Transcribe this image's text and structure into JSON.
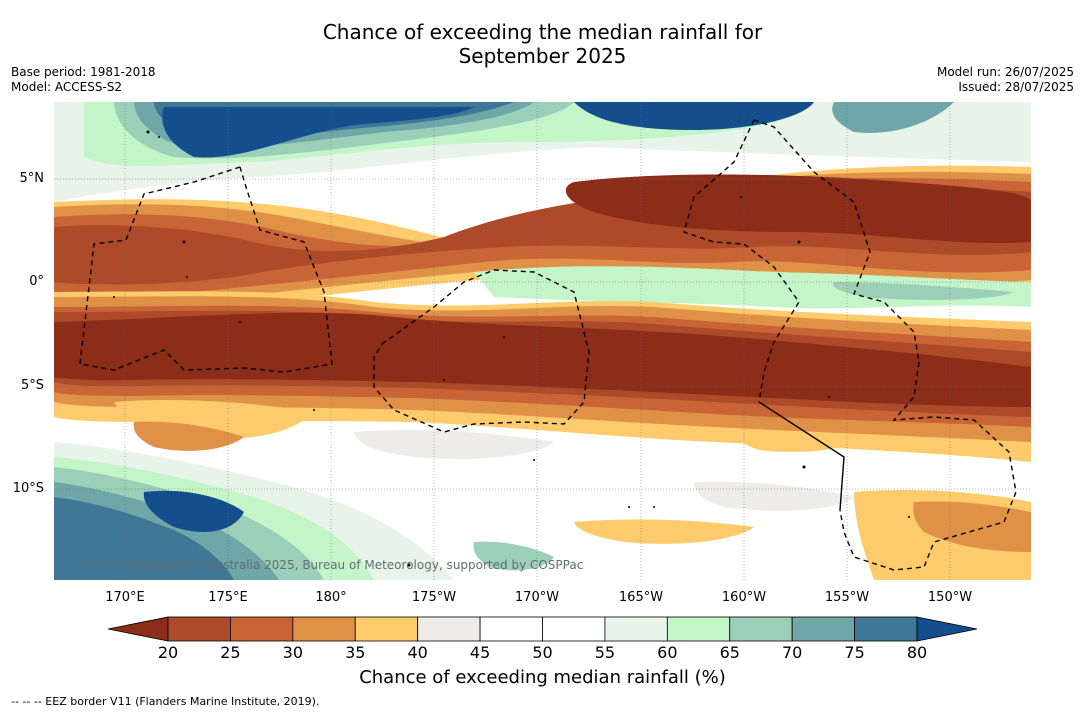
{
  "title": {
    "line1": "Chance of exceeding the median rainfall for",
    "line2": "September 2025"
  },
  "meta_left": {
    "base_period": "Base period: 1981-2018",
    "model": "Model: ACCESS-S2"
  },
  "meta_right": {
    "model_run": "Model run: 26/07/2025",
    "issued": "Issued: 28/07/2025"
  },
  "map": {
    "lat_labels": [
      "5°N",
      "0°",
      "5°S",
      "10°S"
    ],
    "lon_labels": [
      "170°E",
      "175°E",
      "180°",
      "175°W",
      "170°W",
      "165°W",
      "160°W",
      "155°W",
      "150°W"
    ],
    "copyright": "© Commonwealth of Australia 2025, Bureau of Meteorology, supported by COSPPac"
  },
  "colorbar": {
    "ticks": [
      "20",
      "25",
      "30",
      "35",
      "40",
      "45",
      "50",
      "55",
      "60",
      "65",
      "70",
      "75",
      "80"
    ],
    "colors": [
      "#8b2d18",
      "#ad4a2a",
      "#c86436",
      "#df9247",
      "#fdcb6c",
      "#eeece8",
      "#ffffff",
      "#ffffff",
      "#e8f4e9",
      "#c4f5c9",
      "#9bcfb8",
      "#6fa6a8",
      "#3f7796",
      "#144e8c"
    ],
    "label": "Chance of exceeding median rainfall (%)"
  },
  "footnote": "--  --  -- EEZ border V11 (Flanders Marine Institute, 2019)."
}
